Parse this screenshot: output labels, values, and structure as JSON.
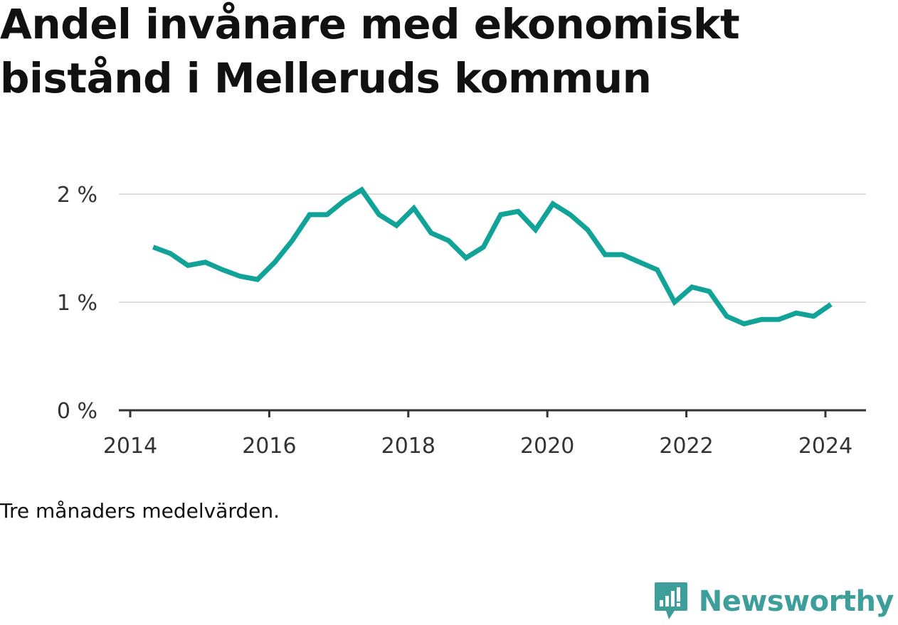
{
  "title": "Andel invånare med ekonomiskt bistånd i Melleruds kommun",
  "note": "Tre månaders medelvärden.",
  "brand": {
    "name": "Newsworthy",
    "icon": "newsworthy-logo-icon",
    "color": "#3d9e9a"
  },
  "chart_data": {
    "type": "line",
    "title": "Andel invånare med ekonomiskt bistånd i Melleruds kommun",
    "xlabel": "",
    "ylabel": "",
    "xlim": [
      2014,
      2024.33
    ],
    "ylim": [
      0,
      2
    ],
    "x_ticks": [
      {
        "value": 2014,
        "label": "2014"
      },
      {
        "value": 2016,
        "label": "2016"
      },
      {
        "value": 2018,
        "label": "2018"
      },
      {
        "value": 2020,
        "label": "2020"
      },
      {
        "value": 2022,
        "label": "2022"
      },
      {
        "value": 2024,
        "label": "2024"
      }
    ],
    "y_ticks": [
      {
        "value": 0,
        "label": "0 %"
      },
      {
        "value": 1,
        "label": "1 %"
      },
      {
        "value": 2,
        "label": "2 %"
      }
    ],
    "grid": true,
    "color": "#12a398",
    "series": [
      {
        "x": [
          2014.33,
          2014.58,
          2014.83,
          2015.08,
          2015.33,
          2015.58,
          2015.83,
          2016.08,
          2016.33,
          2016.58,
          2016.83,
          2017.08,
          2017.33,
          2017.58,
          2017.83,
          2018.08,
          2018.33,
          2018.58,
          2018.83,
          2019.08,
          2019.33,
          2019.58,
          2019.83,
          2020.08,
          2020.33,
          2020.58,
          2020.83,
          2021.08,
          2021.33,
          2021.58,
          2021.83,
          2022.08,
          2022.33,
          2022.58,
          2022.83,
          2023.08,
          2023.33,
          2023.58,
          2023.83,
          2024.08
        ],
        "values": [
          1.51,
          1.45,
          1.34,
          1.37,
          1.3,
          1.24,
          1.21,
          1.37,
          1.57,
          1.81,
          1.81,
          1.94,
          2.04,
          1.81,
          1.71,
          1.87,
          1.64,
          1.57,
          1.41,
          1.51,
          1.81,
          1.84,
          1.67,
          1.91,
          1.81,
          1.67,
          1.44,
          1.44,
          1.37,
          1.3,
          1.0,
          1.14,
          1.1,
          0.87,
          0.8,
          0.84,
          0.84,
          0.9,
          0.87,
          0.98
        ]
      }
    ]
  }
}
